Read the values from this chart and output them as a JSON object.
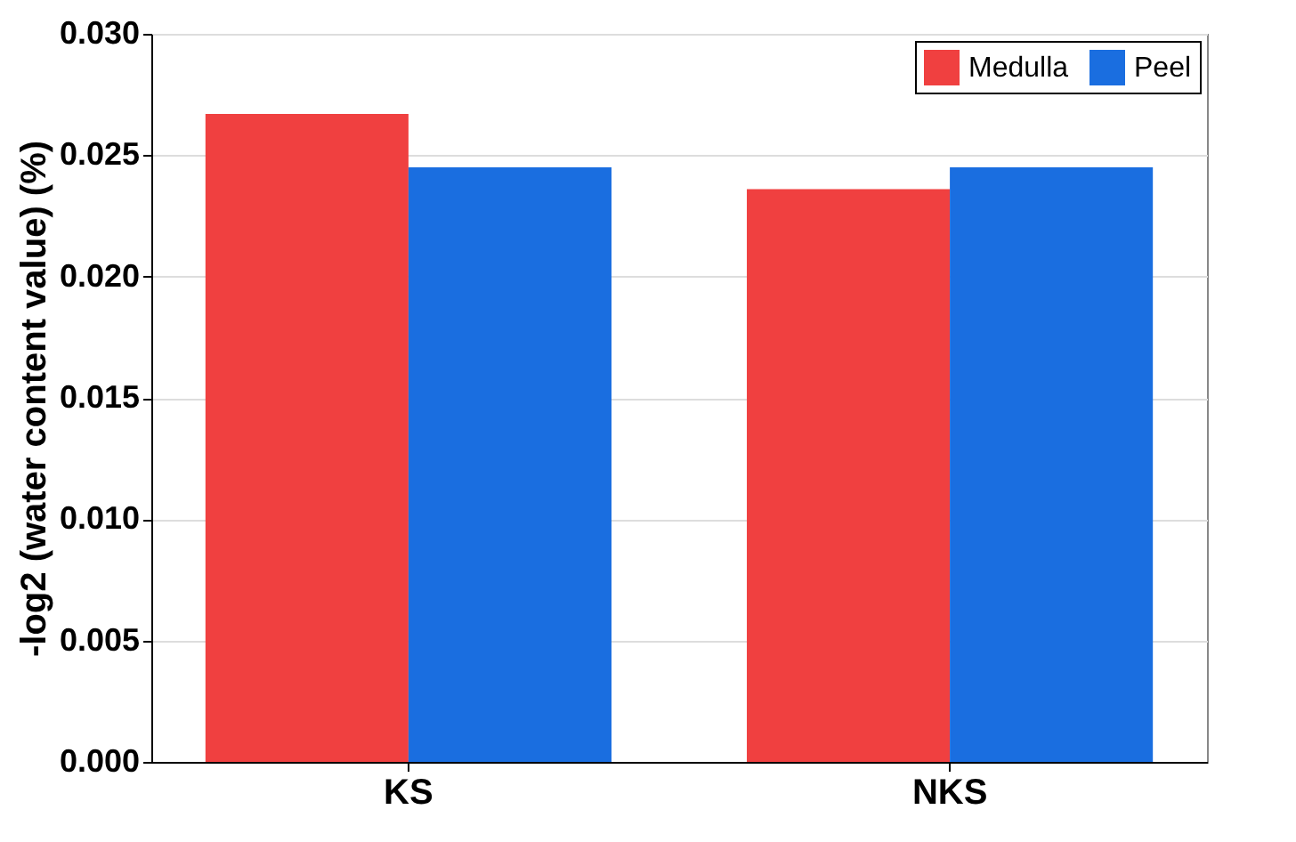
{
  "chart_data": {
    "type": "bar",
    "ylabel": "-log2 (water content value) (%)",
    "categories": [
      "KS",
      "NKS"
    ],
    "series": [
      {
        "name": "Medulla",
        "color": "#f04040",
        "values": [
          0.0267,
          0.0236
        ]
      },
      {
        "name": "Peel",
        "color": "#1a6ee0",
        "values": [
          0.0245,
          0.0245
        ]
      }
    ],
    "ylim": [
      0,
      0.03
    ],
    "yticks": [
      {
        "value": 0,
        "label": "0.000"
      },
      {
        "value": 0.005,
        "label": "0.005"
      },
      {
        "value": 0.01,
        "label": "0.010"
      },
      {
        "value": 0.015,
        "label": "0.015"
      },
      {
        "value": 0.02,
        "label": "0.020"
      },
      {
        "value": 0.025,
        "label": "0.025"
      },
      {
        "value": 0.03,
        "label": "0.030"
      }
    ],
    "grid": "y",
    "legend": "top right"
  }
}
